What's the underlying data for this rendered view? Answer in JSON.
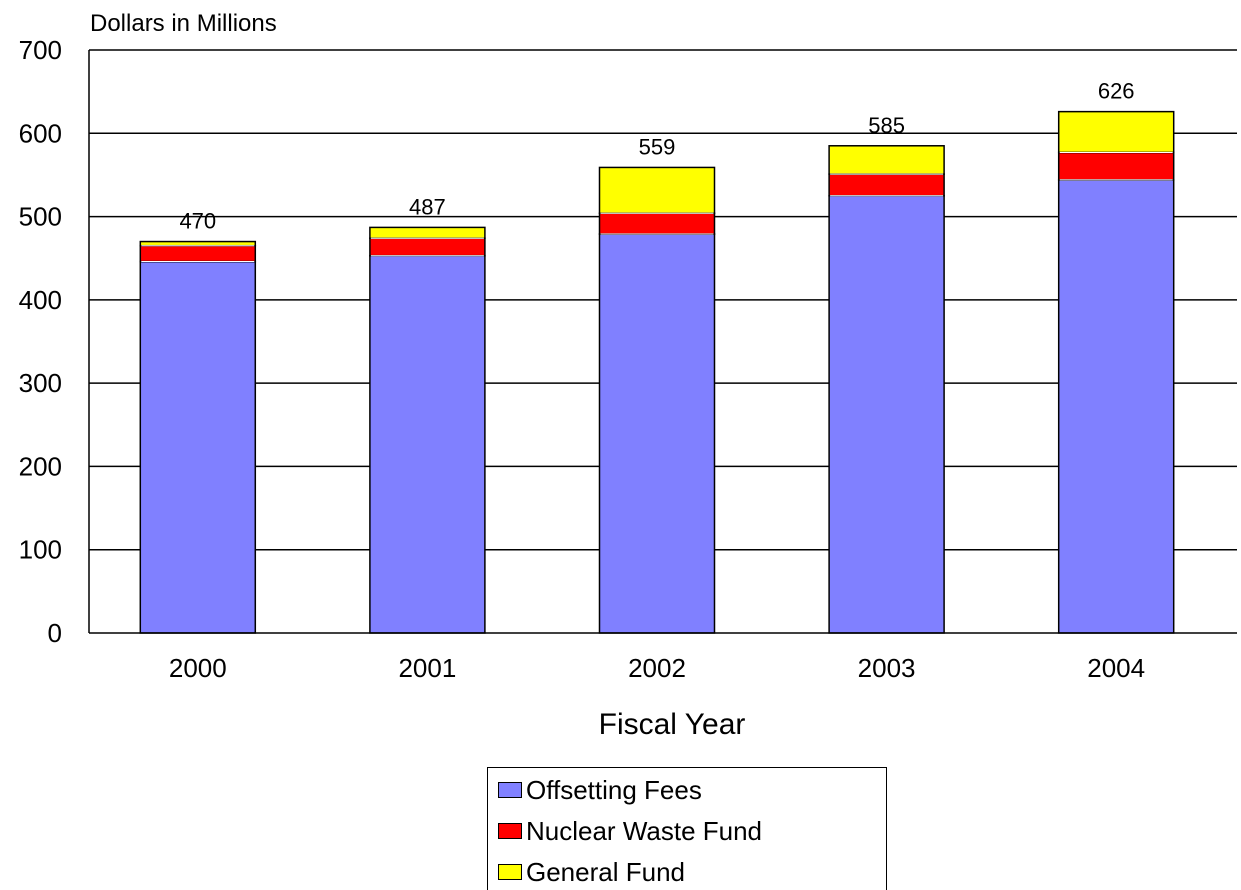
{
  "chart_data": {
    "type": "bar",
    "stacked": true,
    "ylabel": "Dollars in Millions",
    "xlabel": "Fiscal Year",
    "ylim": [
      0,
      700
    ],
    "yticks": [
      0,
      100,
      200,
      300,
      400,
      500,
      600,
      700
    ],
    "grid": true,
    "legend_position": "bottom",
    "categories": [
      "2000",
      "2001",
      "2002",
      "2003",
      "2004"
    ],
    "series": [
      {
        "name": "Offsetting Fees",
        "color": "#8080ff",
        "values": [
          446,
          453,
          479,
          525,
          544
        ]
      },
      {
        "name": "Nuclear Waste Fund",
        "color": "#ff0000",
        "values": [
          19,
          21,
          25,
          26,
          33
        ]
      },
      {
        "name": "General Fund",
        "color": "#ffff00",
        "values": [
          5,
          13,
          55,
          34,
          49
        ]
      }
    ],
    "totals": [
      470,
      487,
      559,
      585,
      626
    ]
  }
}
